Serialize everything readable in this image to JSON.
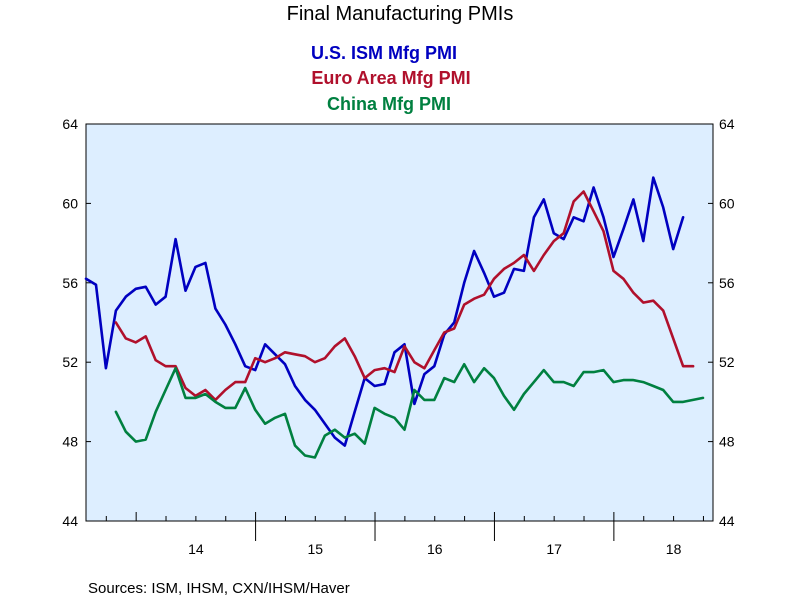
{
  "chart_data": {
    "type": "line",
    "title": "Final Manufacturing PMIs",
    "source": "Sources:  ISM, IHSM, CXN/IHSM/Haver",
    "ylim": [
      44,
      64
    ],
    "y_ticks": [
      44,
      48,
      52,
      56,
      60,
      64
    ],
    "x_start_year": 2013.58,
    "x_end_year": 2018.83,
    "x_tick_labels": [
      "14",
      "15",
      "16",
      "17",
      "18"
    ],
    "x_tick_centers_year": [
      2014.5,
      2015.5,
      2016.5,
      2017.5,
      2018.5
    ],
    "x_tick_boundaries_year": [
      2015,
      2016,
      2017,
      2018
    ],
    "x_minor_ticks_per_year": 4,
    "grid": false,
    "background_color": "#DDEEFF",
    "legend_position": "top-center",
    "series": [
      {
        "name": "U.S. ISM Mfg PMI",
        "color": "#0000C0",
        "start_year": 2013.58,
        "step_months": 1,
        "values": [
          56.2,
          55.9,
          51.7,
          54.6,
          55.3,
          55.7,
          55.8,
          54.9,
          55.3,
          58.2,
          55.6,
          56.8,
          57.0,
          54.7,
          53.9,
          52.9,
          51.8,
          51.6,
          52.9,
          52.4,
          51.9,
          50.8,
          50.1,
          49.6,
          48.9,
          48.2,
          47.8,
          49.5,
          51.2,
          50.8,
          50.9,
          52.5,
          52.9,
          49.9,
          51.4,
          51.8,
          53.4,
          54.0,
          56.0,
          57.6,
          56.5,
          55.3,
          55.5,
          56.7,
          56.6,
          59.3,
          60.2,
          58.5,
          58.2,
          59.3,
          59.1,
          60.8,
          59.3,
          57.3,
          58.7,
          60.2,
          58.1,
          61.3,
          59.8,
          57.7,
          59.3
        ]
      },
      {
        "name": "Euro Area Mfg PMI",
        "color": "#B0102C",
        "start_year": 2013.83,
        "step_months": 1,
        "values": [
          54.0,
          53.2,
          53.0,
          53.3,
          52.1,
          51.8,
          51.8,
          50.7,
          50.3,
          50.6,
          50.1,
          50.6,
          51.0,
          51.0,
          52.2,
          52.0,
          52.2,
          52.5,
          52.4,
          52.3,
          52.0,
          52.2,
          52.8,
          53.2,
          52.3,
          51.2,
          51.6,
          51.7,
          51.5,
          52.8,
          52.0,
          51.7,
          52.6,
          53.5,
          53.7,
          54.9,
          55.2,
          55.4,
          56.2,
          56.7,
          57.0,
          57.4,
          56.6,
          57.4,
          58.1,
          58.5,
          60.1,
          60.6,
          59.6,
          58.6,
          56.6,
          56.2,
          55.5,
          55.0,
          55.1,
          54.6,
          53.2,
          51.8,
          51.8
        ]
      },
      {
        "name": "China Mfg PMI",
        "color": "#008040",
        "start_year": 2013.83,
        "step_months": 1,
        "values": [
          49.5,
          48.5,
          48.0,
          48.1,
          49.5,
          50.6,
          51.7,
          50.2,
          50.2,
          50.4,
          50.0,
          49.7,
          49.7,
          50.7,
          49.6,
          48.9,
          49.2,
          49.4,
          47.8,
          47.3,
          47.2,
          48.3,
          48.6,
          48.2,
          48.4,
          47.9,
          49.7,
          49.4,
          49.2,
          48.6,
          50.6,
          50.1,
          50.1,
          51.2,
          51.0,
          51.9,
          51.0,
          51.7,
          51.2,
          50.3,
          49.6,
          50.4,
          51.0,
          51.6,
          51.0,
          51.0,
          50.8,
          51.5,
          51.5,
          51.6,
          51.0,
          51.1,
          51.1,
          51.0,
          50.8,
          50.6,
          50.0,
          50.0,
          50.1,
          50.2
        ]
      }
    ]
  }
}
